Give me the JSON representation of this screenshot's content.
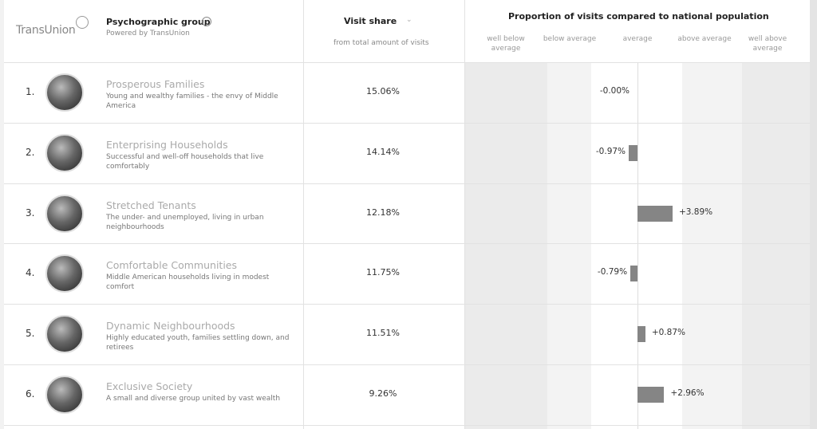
{
  "header": {
    "logo": "TransUnion",
    "group_title": "Psychographic group",
    "powered_by": "Powered by TransUnion",
    "visit_share_title": "Visit share",
    "visit_share_sub": "from total amount of visits",
    "proportion_title": "Proportion of visits compared to national population",
    "bands": [
      "well below average",
      "below average",
      "average",
      "above average",
      "well above average"
    ]
  },
  "rows": [
    {
      "rank": "1.",
      "name": "Prosperous Families",
      "description": "Young and wealthy families - the envy of Middle America",
      "visit_share": "15.06%",
      "proportion": 0,
      "proportion_label": "-0.00%"
    },
    {
      "rank": "2.",
      "name": "Enterprising Households",
      "description": "Successful and well-off households that live comfortably",
      "visit_share": "14.14%",
      "proportion": -0.97,
      "proportion_label": "-0.97%"
    },
    {
      "rank": "3.",
      "name": "Stretched Tenants",
      "description": "The under- and unemployed, living in urban neighbourhoods",
      "visit_share": "12.18%",
      "proportion": 3.89,
      "proportion_label": "+3.89%"
    },
    {
      "rank": "4.",
      "name": "Comfortable Communities",
      "description": "Middle American households living in modest comfort",
      "visit_share": "11.75%",
      "proportion": -0.79,
      "proportion_label": "-0.79%"
    },
    {
      "rank": "5.",
      "name": "Dynamic Neighbourhoods",
      "description": "Highly educated youth, families settling down, and retirees",
      "visit_share": "11.51%",
      "proportion": 0.87,
      "proportion_label": "+0.87%"
    },
    {
      "rank": "6.",
      "name": "Exclusive Society",
      "description": "A small and diverse group united by vast wealth",
      "visit_share": "9.26%",
      "proportion": 2.96,
      "proportion_label": "+2.96%"
    }
  ]
}
